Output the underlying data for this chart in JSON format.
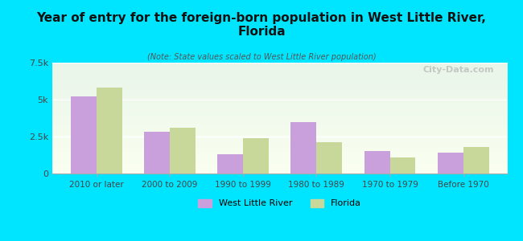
{
  "title": "Year of entry for the foreign-born population in West Little River,\nFlorida",
  "subtitle": "(Note: State values scaled to West Little River population)",
  "categories": [
    "2010 or later",
    "2000 to 2009",
    "1990 to 1999",
    "1980 to 1989",
    "1970 to 1979",
    "Before 1970"
  ],
  "west_little_river": [
    5200,
    2800,
    1300,
    3500,
    1500,
    1400
  ],
  "florida": [
    5800,
    3100,
    2400,
    2100,
    1100,
    1800
  ],
  "bar_color_wlr": "#c9a0dc",
  "bar_color_fl": "#c8d89a",
  "background_color": "#00e5ff",
  "plot_bg_top": "#e8f5e9",
  "plot_bg_bottom": "#fffff0",
  "ylim": [
    0,
    7500
  ],
  "yticks": [
    0,
    2500,
    5000,
    7500
  ],
  "ytick_labels": [
    "0",
    "2.5k",
    "5k",
    "7.5k"
  ],
  "watermark": "City-Data.com",
  "legend_wlr": "West Little River",
  "legend_fl": "Florida"
}
